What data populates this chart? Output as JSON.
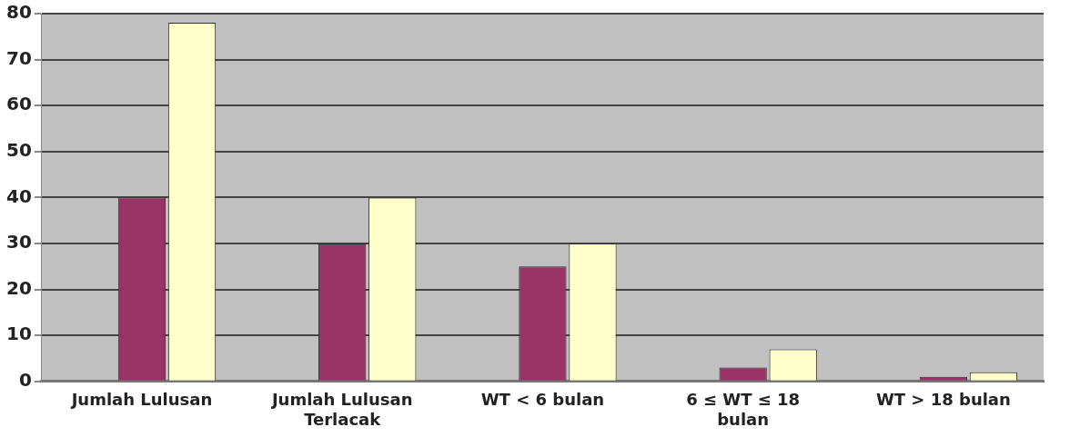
{
  "chart_data": {
    "type": "bar",
    "categories": [
      "Jumlah Lulusan",
      "Jumlah Lulusan Terlacak",
      "WT < 6 bulan",
      "6 ≤ WT ≤ 18 bulan",
      "WT > 18 bulan"
    ],
    "series": [
      {
        "color": "#9999ff",
        "values": [
          0,
          0,
          0,
          0,
          0
        ]
      },
      {
        "color": "#993366",
        "values": [
          40,
          30,
          25,
          3,
          1
        ]
      },
      {
        "color": "#ffffcc",
        "values": [
          78,
          40,
          30,
          7,
          2
        ]
      }
    ],
    "ylim": [
      0,
      80
    ],
    "yticks": [
      0,
      10,
      20,
      30,
      40,
      50,
      60,
      70,
      80
    ],
    "grid": "y",
    "legend": false
  }
}
